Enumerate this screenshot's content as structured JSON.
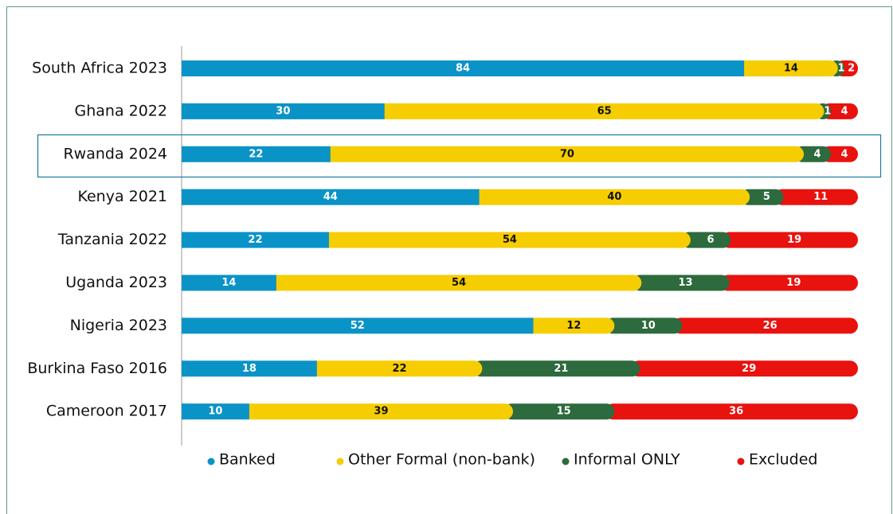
{
  "chart_data": {
    "type": "stacked_bar_horizontal",
    "categories": [
      "South Africa 2023",
      "Ghana 2022",
      "Rwanda 2024",
      "Kenya 2021",
      "Tanzania 2022",
      "Uganda 2023",
      "Nigeria 2023",
      "Burkina Faso 2016",
      "Cameroon 2017"
    ],
    "series": [
      {
        "name": "Banked",
        "color": "#0a93c7",
        "values": [
          84,
          30,
          22,
          44,
          22,
          14,
          52,
          18,
          10
        ]
      },
      {
        "name": "Other Formal (non-bank)",
        "color": "#f6cd00",
        "values": [
          14,
          65,
          70,
          40,
          54,
          54,
          12,
          22,
          39
        ]
      },
      {
        "name": "Informal ONLY",
        "color": "#2d6a3d",
        "values": [
          1,
          1,
          4,
          5,
          6,
          13,
          10,
          21,
          15
        ]
      },
      {
        "name": "Excluded",
        "color": "#e8120f",
        "values": [
          2,
          4,
          4,
          11,
          19,
          19,
          26,
          29,
          36
        ]
      }
    ]
  }
}
